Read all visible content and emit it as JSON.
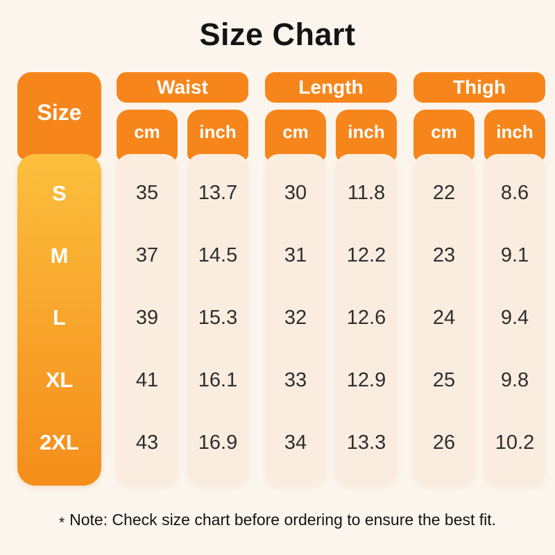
{
  "title": "Size Chart",
  "header": {
    "size_label": "Size",
    "groups": [
      {
        "label": "Waist",
        "units": [
          "cm",
          "inch"
        ]
      },
      {
        "label": "Length",
        "units": [
          "cm",
          "inch"
        ]
      },
      {
        "label": "Thigh",
        "units": [
          "cm",
          "inch"
        ]
      }
    ]
  },
  "chart_data": {
    "type": "table",
    "title": "Size Chart",
    "columns": [
      "Size",
      "Waist cm",
      "Waist inch",
      "Length cm",
      "Length inch",
      "Thigh cm",
      "Thigh inch"
    ],
    "rows": [
      [
        "S",
        "35",
        "13.7",
        "30",
        "11.8",
        "22",
        "8.6"
      ],
      [
        "M",
        "37",
        "14.5",
        "31",
        "12.2",
        "23",
        "9.1"
      ],
      [
        "L",
        "39",
        "15.3",
        "32",
        "12.6",
        "24",
        "9.4"
      ],
      [
        "XL",
        "41",
        "16.1",
        "33",
        "12.9",
        "25",
        "9.8"
      ],
      [
        "2XL",
        "43",
        "16.9",
        "34",
        "13.3",
        "26",
        "10.2"
      ]
    ]
  },
  "note": {
    "star": "*",
    "text": "Note: Check size chart before ordering to ensure the best fit."
  },
  "colors": {
    "background": "#fbf5ed",
    "accent_orange": "#f6861c",
    "size_gradient_top": "#fcbf3d",
    "size_gradient_bottom": "#f58d1a",
    "cell_background": "#faeddf",
    "value_text": "#2e2e2e",
    "header_text": "#ffffff",
    "title_text": "#141414"
  }
}
